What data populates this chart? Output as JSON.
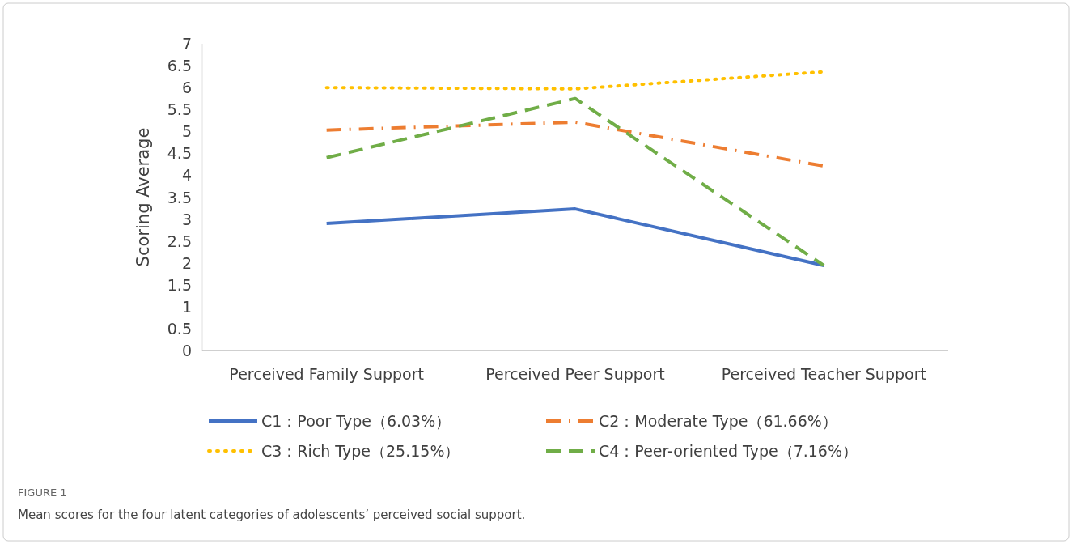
{
  "chart_data": {
    "type": "line",
    "ylabel": "Scoring Average",
    "categories": [
      "Perceived Family Support",
      "Perceived Peer Support",
      "Perceived Teacher Support"
    ],
    "ylim": [
      0,
      7
    ],
    "yticks": [
      0,
      0.5,
      1,
      1.5,
      2,
      2.5,
      3,
      3.5,
      4,
      4.5,
      5,
      5.5,
      6,
      6.5,
      7
    ],
    "series": [
      {
        "name": "C1：Poor Type（6.03%）",
        "color": "#4472c4",
        "line_style": "solid",
        "values": [
          2.9,
          3.23,
          1.94
        ]
      },
      {
        "name": "C2：Moderate Type（61.66%）",
        "color": "#ed7d31",
        "line_style": "dashdot",
        "values": [
          5.03,
          5.21,
          4.21
        ]
      },
      {
        "name": "C3：Rich Type（25.15%）",
        "color": "#ffc000",
        "line_style": "dotted",
        "values": [
          6.0,
          5.97,
          6.36
        ]
      },
      {
        "name": "C4：Peer-oriented Type（7.16%）",
        "color": "#70ad47",
        "line_style": "dashed",
        "values": [
          4.4,
          5.75,
          1.94
        ]
      }
    ],
    "legend": "bottom",
    "grid": false,
    "marker": "none",
    "annotations": [
      "FIGURE 1",
      "Mean scores for the four latent categories of adolescents’ perceived social support."
    ]
  }
}
